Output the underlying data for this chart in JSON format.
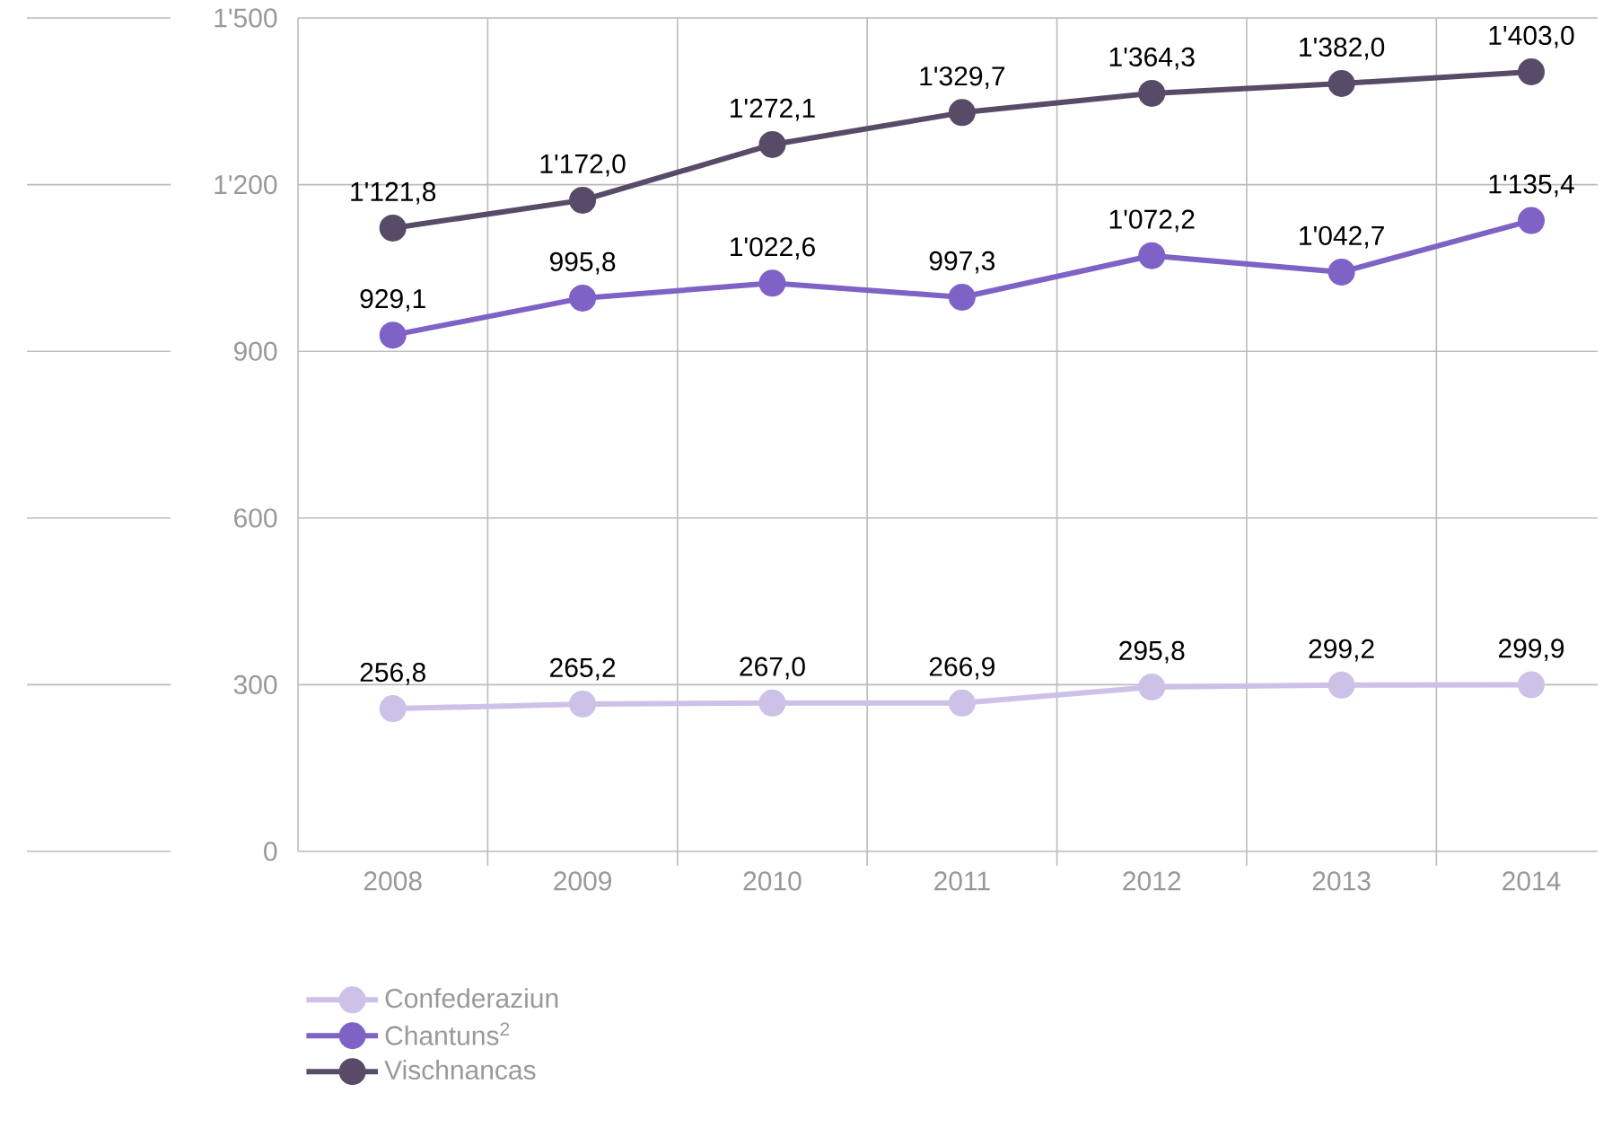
{
  "chart_data": {
    "type": "line",
    "categories": [
      "2008",
      "2009",
      "2010",
      "2011",
      "2012",
      "2013",
      "2014"
    ],
    "series": [
      {
        "name": "Confederaziun",
        "color": "#cdc1e8",
        "values": [
          256.8,
          265.2,
          267.0,
          266.9,
          295.8,
          299.2,
          299.9
        ],
        "value_labels": [
          "256,8",
          "265,2",
          "267,0",
          "266,9",
          "295,8",
          "299,2",
          "299,9"
        ]
      },
      {
        "name": "Chantuns$^{2}$",
        "color": "#7f62c6",
        "values": [
          929.1,
          995.8,
          1022.6,
          997.3,
          1072.2,
          1042.7,
          1135.4
        ],
        "value_labels": [
          "929,1",
          "995,8",
          "1'022,6",
          "997,3",
          "1'072,2",
          "1'042,7",
          "1'135,4"
        ]
      },
      {
        "name": "Vischnancas",
        "color": "#584b68",
        "values": [
          1121.8,
          1172.0,
          1272.1,
          1329.7,
          1364.3,
          1382.0,
          1403.0
        ],
        "value_labels": [
          "1'121,8",
          "1'172,0",
          "1'272,1",
          "1'329,7",
          "1'364,3",
          "1'382,0",
          "1'403,0"
        ]
      }
    ],
    "ylim": [
      0,
      1500
    ],
    "yticks": [
      0,
      300,
      600,
      900,
      {
        "value": 1200,
        "label": "1'200"
      },
      {
        "value": 1500,
        "label": "1'500"
      }
    ],
    "grid": true,
    "legend": "bottom left",
    "marker": "circle",
    "line_style": "solid"
  }
}
